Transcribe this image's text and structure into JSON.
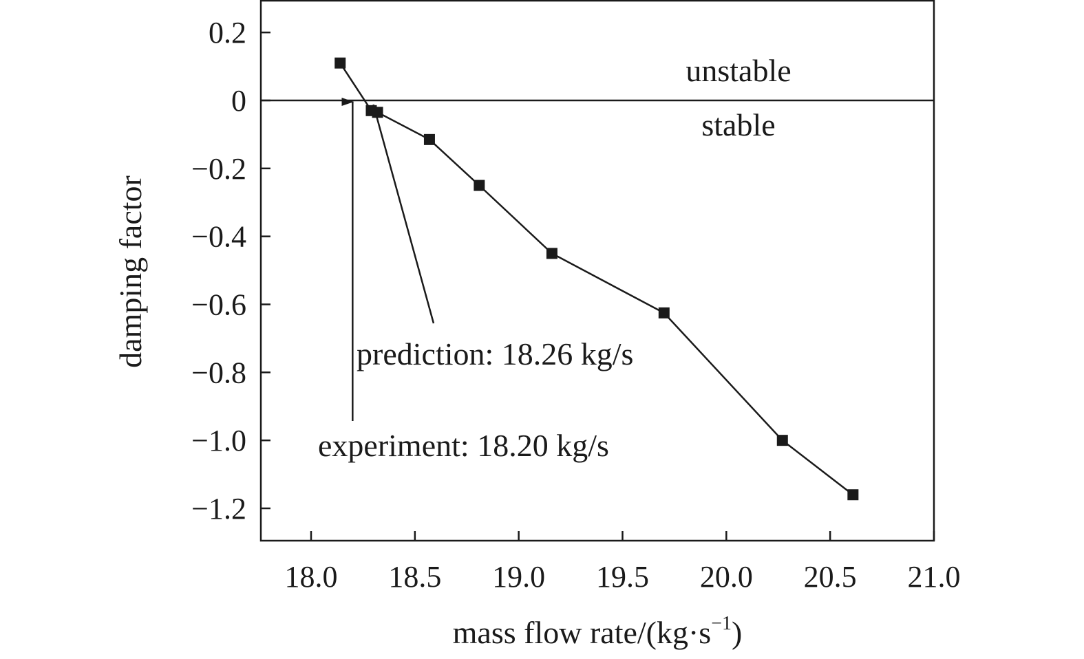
{
  "chart_data": {
    "type": "line",
    "xlabel": "mass flow rate/(kg·s",
    "xlabel_sup": "−1",
    "xlabel_end": ")",
    "ylabel": "damping factor",
    "xlim": [
      17.75,
      21.0
    ],
    "ylim": [
      -1.3,
      0.29
    ],
    "x_ticks": [
      18.0,
      18.5,
      19.0,
      19.5,
      20.0,
      20.5,
      21.0
    ],
    "x_tick_labels": [
      "18.0",
      "18.5",
      "19.0",
      "19.5",
      "20.0",
      "20.5",
      "21.0"
    ],
    "y_ticks": [
      0.2,
      0,
      -0.2,
      -0.4,
      -0.6,
      -0.8,
      -1.0,
      -1.2
    ],
    "y_tick_labels": [
      "0.2",
      "0",
      "−0.2",
      "−0.4",
      "−0.6",
      "−0.8",
      "−1.0",
      "−1.2"
    ],
    "series": [
      {
        "marker": "square",
        "color": "#1a1a1a",
        "x": [
          18.14,
          18.29,
          18.32,
          18.57,
          18.81,
          19.16,
          19.7,
          20.27,
          20.61
        ],
        "y": [
          0.11,
          -0.03,
          -0.035,
          -0.115,
          -0.25,
          -0.45,
          -0.625,
          -1.0,
          -1.16
        ]
      }
    ],
    "reference_line": {
      "y": 0
    },
    "regions": {
      "above": "unstable",
      "below": "stable"
    },
    "annotations": [
      {
        "text": "prediction: 18.26 kg/s",
        "x": 18.26
      },
      {
        "text": "experiment: 18.20 kg/s",
        "x": 18.2
      }
    ],
    "grid": false,
    "legend": "none"
  }
}
